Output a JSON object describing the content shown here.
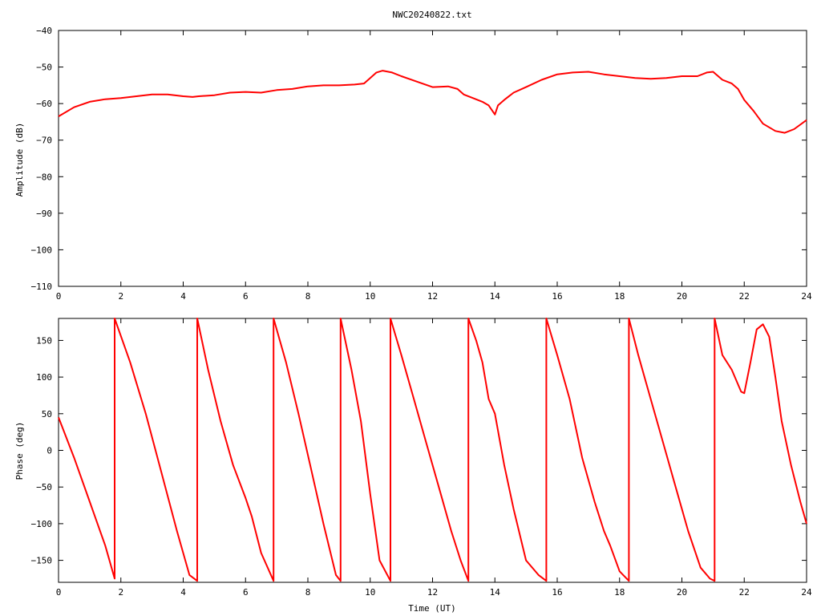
{
  "title": "NWC20240822.txt",
  "colors": {
    "series": "#ff0000",
    "grid": "#a0a0a0",
    "frame": "#000000",
    "background": "#ffffff"
  },
  "chart_data": [
    {
      "type": "line",
      "name": "amplitude",
      "title": "NWC20240822.txt",
      "xlabel": "",
      "ylabel": "Amplitude (dB)",
      "xlim": [
        0,
        24
      ],
      "ylim": [
        -110,
        -40
      ],
      "xticks": [
        0,
        2,
        4,
        6,
        8,
        10,
        12,
        14,
        16,
        18,
        20,
        22,
        24
      ],
      "yticks": [
        -110,
        -100,
        -90,
        -80,
        -70,
        -60,
        -50,
        -40
      ],
      "grid": false,
      "legend": "none",
      "series": [
        {
          "x": [
            0,
            0.5,
            1,
            1.5,
            2,
            2.5,
            3,
            3.5,
            4,
            4.3,
            4.5,
            5,
            5.5,
            6,
            6.5,
            7,
            7.5,
            8,
            8.5,
            9,
            9.5,
            9.8,
            10,
            10.2,
            10.4,
            10.7,
            11,
            11.5,
            12,
            12.5,
            12.8,
            13,
            13.3,
            13.6,
            13.8,
            14,
            14.1,
            14.3,
            14.6,
            15,
            15.5,
            16,
            16.5,
            17,
            17.5,
            18,
            18.5,
            19,
            19.5,
            20,
            20.5,
            20.8,
            21,
            21.3,
            21.6,
            21.8,
            22,
            22.3,
            22.6,
            23,
            23.3,
            23.6,
            24
          ],
          "y": [
            -63.5,
            -61,
            -59.5,
            -58.8,
            -58.5,
            -58,
            -57.5,
            -57.5,
            -58,
            -58.2,
            -58,
            -57.7,
            -57,
            -56.8,
            -57,
            -56.3,
            -56,
            -55.3,
            -55,
            -55,
            -54.8,
            -54.5,
            -53,
            -51.5,
            -51,
            -51.5,
            -52.5,
            -54,
            -55.5,
            -55.3,
            -56,
            -57.5,
            -58.5,
            -59.5,
            -60.5,
            -63,
            -60.5,
            -59,
            -57,
            -55.5,
            -53.5,
            -52,
            -51.5,
            -51.3,
            -52,
            -52.5,
            -53,
            -53.2,
            -53,
            -52.5,
            -52.5,
            -51.5,
            -51.3,
            -53.5,
            -54.5,
            -56,
            -59,
            -62,
            -65.5,
            -67.5,
            -68,
            -67,
            -64.5
          ]
        }
      ]
    },
    {
      "type": "line",
      "name": "phase",
      "title": "",
      "xlabel": "Time (UT)",
      "ylabel": "Phase (deg)",
      "xlim": [
        0,
        24
      ],
      "ylim": [
        -180,
        180
      ],
      "xticks": [
        0,
        2,
        4,
        6,
        8,
        10,
        12,
        14,
        16,
        18,
        20,
        22,
        24
      ],
      "yticks": [
        -150,
        -100,
        -50,
        0,
        50,
        100,
        150
      ],
      "grid": false,
      "legend": "none",
      "series": [
        {
          "x": [
            0,
            0.5,
            1,
            1.5,
            1.8,
            1.8,
            2.3,
            2.8,
            3.3,
            3.8,
            4.2,
            4.45,
            4.45,
            4.8,
            5.2,
            5.6,
            6.0,
            6.2,
            6.5,
            6.9,
            6.9,
            7.3,
            7.7,
            8.1,
            8.5,
            8.9,
            9.05,
            9.05,
            9.4,
            9.7,
            10.0,
            10.3,
            10.65,
            10.65,
            11.0,
            11.4,
            11.8,
            12.2,
            12.6,
            12.9,
            13.15,
            13.15,
            13.4,
            13.6,
            13.8,
            14.0,
            14.3,
            14.6,
            15.0,
            15.4,
            15.65,
            15.65,
            16.0,
            16.4,
            16.8,
            17.2,
            17.5,
            17.7,
            18.0,
            18.3,
            18.3,
            18.6,
            19.0,
            19.4,
            19.8,
            20.2,
            20.6,
            20.9,
            21.05,
            21.05,
            21.3,
            21.6,
            21.9,
            22.0,
            22.2,
            22.4,
            22.6,
            22.8,
            23.0,
            23.2,
            23.5,
            23.8,
            24
          ],
          "y": [
            45,
            -10,
            -70,
            -130,
            -175,
            180,
            120,
            50,
            -30,
            -110,
            -170,
            -178,
            180,
            110,
            40,
            -20,
            -65,
            -90,
            -140,
            -178,
            180,
            120,
            50,
            -25,
            -100,
            -170,
            -178,
            180,
            110,
            40,
            -60,
            -150,
            -178,
            180,
            130,
            70,
            10,
            -50,
            -110,
            -150,
            -178,
            180,
            150,
            120,
            70,
            50,
            -20,
            -80,
            -150,
            -170,
            -178,
            180,
            130,
            70,
            -10,
            -70,
            -110,
            -130,
            -165,
            -178,
            180,
            130,
            70,
            10,
            -50,
            -110,
            -160,
            -175,
            -178,
            180,
            130,
            110,
            80,
            78,
            120,
            165,
            172,
            155,
            100,
            40,
            -20,
            -70,
            -100
          ]
        }
      ]
    }
  ]
}
